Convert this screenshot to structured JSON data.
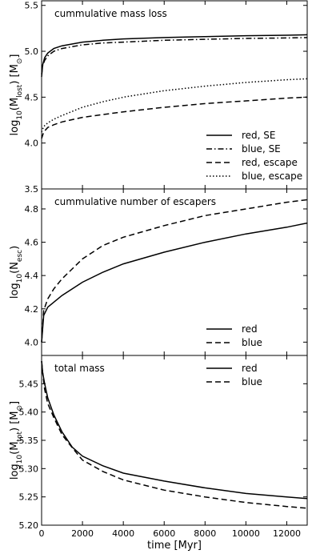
{
  "chart_data": [
    {
      "type": "line",
      "annotation": "cummulative mass loss",
      "ylabel": {
        "base": "log",
        "sub1": "10",
        "mid": "(M",
        "sub2": "lost",
        "tail": ") [M",
        "sub3": "⊙",
        "end": "]"
      },
      "xlim": [
        0,
        13000
      ],
      "ylim": [
        3.5,
        5.55
      ],
      "yticks": [
        3.5,
        4.0,
        4.5,
        5.0,
        5.5
      ],
      "ytick_labels": [
        "3.5",
        "4.0",
        "4.5",
        "5.0",
        "5.5"
      ],
      "legend_position": "lower-right",
      "series": [
        {
          "name": "red, SE",
          "style": "solid",
          "points": [
            [
              0,
              4.72
            ],
            [
              50,
              4.85
            ],
            [
              150,
              4.93
            ],
            [
              300,
              4.98
            ],
            [
              600,
              5.03
            ],
            [
              1000,
              5.06
            ],
            [
              2000,
              5.1
            ],
            [
              3000,
              5.12
            ],
            [
              4000,
              5.135
            ],
            [
              6000,
              5.15
            ],
            [
              8000,
              5.16
            ],
            [
              10000,
              5.17
            ],
            [
              12000,
              5.175
            ],
            [
              13000,
              5.18
            ]
          ]
        },
        {
          "name": "blue, SE",
          "style": "dashdot",
          "points": [
            [
              0,
              4.75
            ],
            [
              50,
              4.84
            ],
            [
              150,
              4.9
            ],
            [
              300,
              4.95
            ],
            [
              600,
              5.0
            ],
            [
              1000,
              5.03
            ],
            [
              2000,
              5.07
            ],
            [
              3000,
              5.09
            ],
            [
              4000,
              5.1
            ],
            [
              6000,
              5.12
            ],
            [
              8000,
              5.13
            ],
            [
              10000,
              5.14
            ],
            [
              12000,
              5.145
            ],
            [
              13000,
              5.15
            ]
          ]
        },
        {
          "name": "red, escape",
          "style": "dashed",
          "points": [
            [
              0,
              4.05
            ],
            [
              100,
              4.12
            ],
            [
              300,
              4.17
            ],
            [
              600,
              4.2
            ],
            [
              1000,
              4.23
            ],
            [
              2000,
              4.28
            ],
            [
              3000,
              4.31
            ],
            [
              4000,
              4.34
            ],
            [
              6000,
              4.39
            ],
            [
              8000,
              4.43
            ],
            [
              10000,
              4.46
            ],
            [
              12000,
              4.49
            ],
            [
              13000,
              4.5
            ]
          ]
        },
        {
          "name": "blue, escape",
          "style": "dotted",
          "points": [
            [
              0,
              4.12
            ],
            [
              100,
              4.18
            ],
            [
              300,
              4.22
            ],
            [
              600,
              4.26
            ],
            [
              1000,
              4.3
            ],
            [
              2000,
              4.39
            ],
            [
              3000,
              4.45
            ],
            [
              4000,
              4.5
            ],
            [
              6000,
              4.57
            ],
            [
              8000,
              4.62
            ],
            [
              10000,
              4.66
            ],
            [
              12000,
              4.69
            ],
            [
              13000,
              4.7
            ]
          ]
        }
      ]
    },
    {
      "type": "line",
      "annotation": "cummulative number of escapers",
      "ylabel": {
        "base": "log",
        "sub1": "10",
        "mid": "(N",
        "sub2": "esc",
        "tail": ")",
        "sub3": "",
        "end": ""
      },
      "xlim": [
        0,
        13000
      ],
      "ylim": [
        3.92,
        4.92
      ],
      "yticks": [
        4.0,
        4.2,
        4.4,
        4.6,
        4.8
      ],
      "ytick_labels": [
        "4.0",
        "4.2",
        "4.4",
        "4.6",
        "4.8"
      ],
      "legend_position": "lower-right",
      "series": [
        {
          "name": "red",
          "style": "solid",
          "points": [
            [
              0,
              4.0
            ],
            [
              100,
              4.16
            ],
            [
              300,
              4.21
            ],
            [
              600,
              4.24
            ],
            [
              1000,
              4.28
            ],
            [
              2000,
              4.36
            ],
            [
              3000,
              4.42
            ],
            [
              4000,
              4.47
            ],
            [
              6000,
              4.54
            ],
            [
              8000,
              4.6
            ],
            [
              10000,
              4.65
            ],
            [
              12000,
              4.69
            ],
            [
              13000,
              4.715
            ]
          ]
        },
        {
          "name": "blue",
          "style": "dashed",
          "points": [
            [
              0,
              4.0
            ],
            [
              100,
              4.19
            ],
            [
              300,
              4.26
            ],
            [
              600,
              4.32
            ],
            [
              1000,
              4.38
            ],
            [
              2000,
              4.5
            ],
            [
              3000,
              4.58
            ],
            [
              4000,
              4.63
            ],
            [
              6000,
              4.7
            ],
            [
              8000,
              4.76
            ],
            [
              10000,
              4.8
            ],
            [
              12000,
              4.84
            ],
            [
              13000,
              4.855
            ]
          ]
        }
      ]
    },
    {
      "type": "line",
      "annotation": "total mass",
      "ylabel": {
        "base": "log",
        "sub1": "10",
        "mid": "(M",
        "sub2": "tot",
        "tail": ") [M",
        "sub3": "⊙",
        "end": "]"
      },
      "xlim": [
        0,
        13000
      ],
      "ylim": [
        5.2,
        5.5
      ],
      "yticks": [
        5.2,
        5.25,
        5.3,
        5.35,
        5.4,
        5.45
      ],
      "ytick_labels": [
        "5.20",
        "5.25",
        "5.30",
        "5.35",
        "5.40",
        "5.45"
      ],
      "xticks": [
        0,
        2000,
        4000,
        6000,
        8000,
        10000,
        12000
      ],
      "xtick_labels": [
        "0",
        "2000",
        "4000",
        "6000",
        "8000",
        "10000",
        "12000"
      ],
      "xlabel": "time [Myr]",
      "legend_position": "upper-right",
      "series": [
        {
          "name": "red",
          "style": "solid",
          "points": [
            [
              0,
              5.49
            ],
            [
              50,
              5.47
            ],
            [
              150,
              5.45
            ],
            [
              300,
              5.425
            ],
            [
              600,
              5.395
            ],
            [
              1000,
              5.365
            ],
            [
              1500,
              5.338
            ],
            [
              2000,
              5.322
            ],
            [
              3000,
              5.305
            ],
            [
              4000,
              5.292
            ],
            [
              6000,
              5.278
            ],
            [
              8000,
              5.266
            ],
            [
              10000,
              5.256
            ],
            [
              12000,
              5.25
            ],
            [
              13000,
              5.247
            ]
          ]
        },
        {
          "name": "blue",
          "style": "dashed",
          "points": [
            [
              0,
              5.49
            ],
            [
              50,
              5.47
            ],
            [
              150,
              5.44
            ],
            [
              300,
              5.415
            ],
            [
              600,
              5.39
            ],
            [
              1000,
              5.36
            ],
            [
              1500,
              5.337
            ],
            [
              2000,
              5.315
            ],
            [
              3000,
              5.295
            ],
            [
              4000,
              5.28
            ],
            [
              6000,
              5.262
            ],
            [
              8000,
              5.25
            ],
            [
              10000,
              5.24
            ],
            [
              12000,
              5.233
            ],
            [
              13000,
              5.23
            ]
          ]
        }
      ]
    }
  ]
}
